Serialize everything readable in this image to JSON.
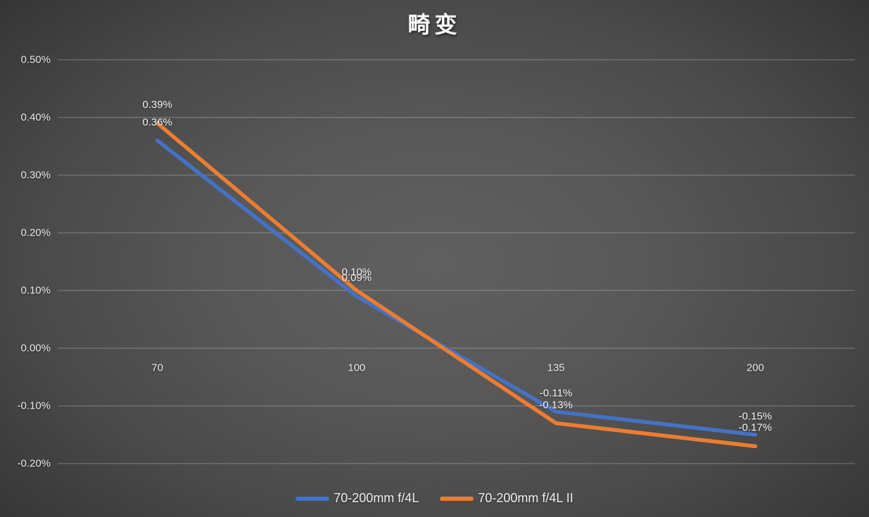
{
  "title": "畸变",
  "colors": {
    "series1": "#4472C4",
    "series2": "#ED7D31",
    "gridline": "rgba(255,255,255,0.3)",
    "axis_text": "#e8e8e8",
    "label_text": "#f5f5f5"
  },
  "chart_data": {
    "type": "line",
    "title": "畸变",
    "categories": [
      "70",
      "100",
      "135",
      "200"
    ],
    "series": [
      {
        "name": "70-200mm f/4L",
        "color": "#4472C4",
        "values": [
          0.36,
          0.09,
          -0.11,
          -0.15
        ],
        "labels": [
          "0.36%",
          "0.09%",
          "-0.11%",
          "-0.15%"
        ]
      },
      {
        "name": "70-200mm f/4L II",
        "color": "#ED7D31",
        "values": [
          0.39,
          0.1,
          -0.13,
          -0.17
        ],
        "labels": [
          "0.39%",
          "0.10%",
          "-0.13%",
          "-0.17%"
        ]
      }
    ],
    "yticks": [
      {
        "label": "0.50%",
        "value": 0.5
      },
      {
        "label": "0.40%",
        "value": 0.4
      },
      {
        "label": "0.30%",
        "value": 0.3
      },
      {
        "label": "0.20%",
        "value": 0.2
      },
      {
        "label": "0.10%",
        "value": 0.1
      },
      {
        "label": "0.00%",
        "value": 0.0
      },
      {
        "label": "-0.10%",
        "value": -0.1
      },
      {
        "label": "-0.20%",
        "value": -0.2
      }
    ],
    "ylim": [
      -0.2,
      0.5
    ],
    "xlabel": "",
    "ylabel": "",
    "grid": true,
    "legend_position": "bottom"
  }
}
